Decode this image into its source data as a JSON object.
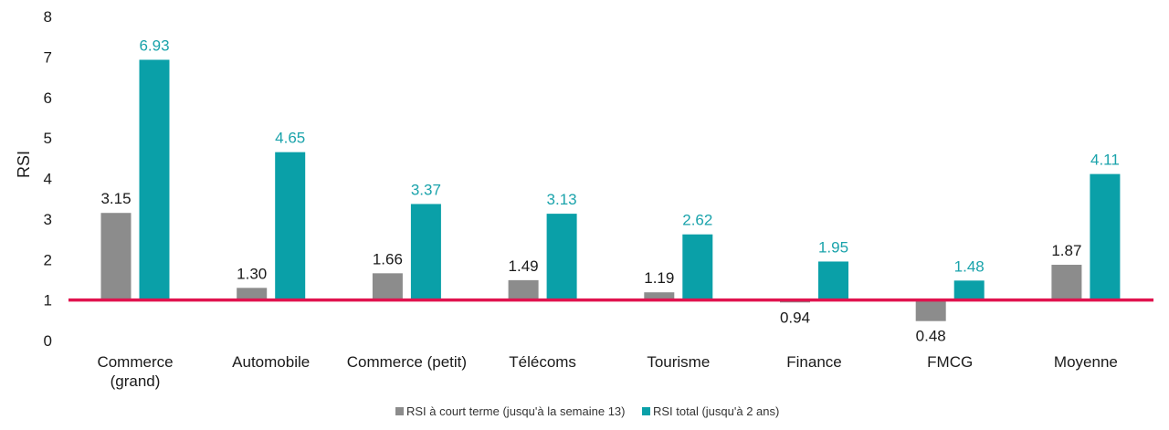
{
  "chart_data": {
    "type": "bar",
    "ylabel": "RSI",
    "xlabel": "",
    "ylim": [
      0,
      8
    ],
    "yticks": [
      "0",
      "1",
      "2",
      "3",
      "4",
      "5",
      "6",
      "7",
      "8"
    ],
    "categories": [
      [
        "Commerce",
        "(grand)"
      ],
      [
        "Automobile"
      ],
      [
        "Commerce (petit)"
      ],
      [
        "Télécoms"
      ],
      [
        "Tourisme"
      ],
      [
        "Finance"
      ],
      [
        "FMCG"
      ],
      [
        "Moyenne"
      ]
    ],
    "series": [
      {
        "name": "RSI à court terme (jusqu'à la semaine 13)",
        "color": "#8c8c8c",
        "label_color": "#1a1a1a",
        "values": [
          3.15,
          1.3,
          1.66,
          1.49,
          1.19,
          0.94,
          0.48,
          1.87
        ],
        "labels": [
          "3.15",
          "1.30",
          "1.66",
          "1.49",
          "1.19",
          "0.94",
          "0.48",
          "1.87"
        ]
      },
      {
        "name": "RSI total (jusqu'à 2 ans)",
        "color": "#0aa0a8",
        "label_color": "#1aa3ab",
        "values": [
          6.93,
          4.65,
          3.37,
          3.13,
          2.62,
          1.95,
          1.48,
          4.11
        ],
        "labels": [
          "6.93",
          "4.65",
          "3.37",
          "3.13",
          "2.62",
          "1.95",
          "1.48",
          "4.11"
        ]
      }
    ],
    "baseline": {
      "value": 1,
      "color": "#e0134e"
    },
    "legend_position": "bottom-center",
    "grid": false
  }
}
